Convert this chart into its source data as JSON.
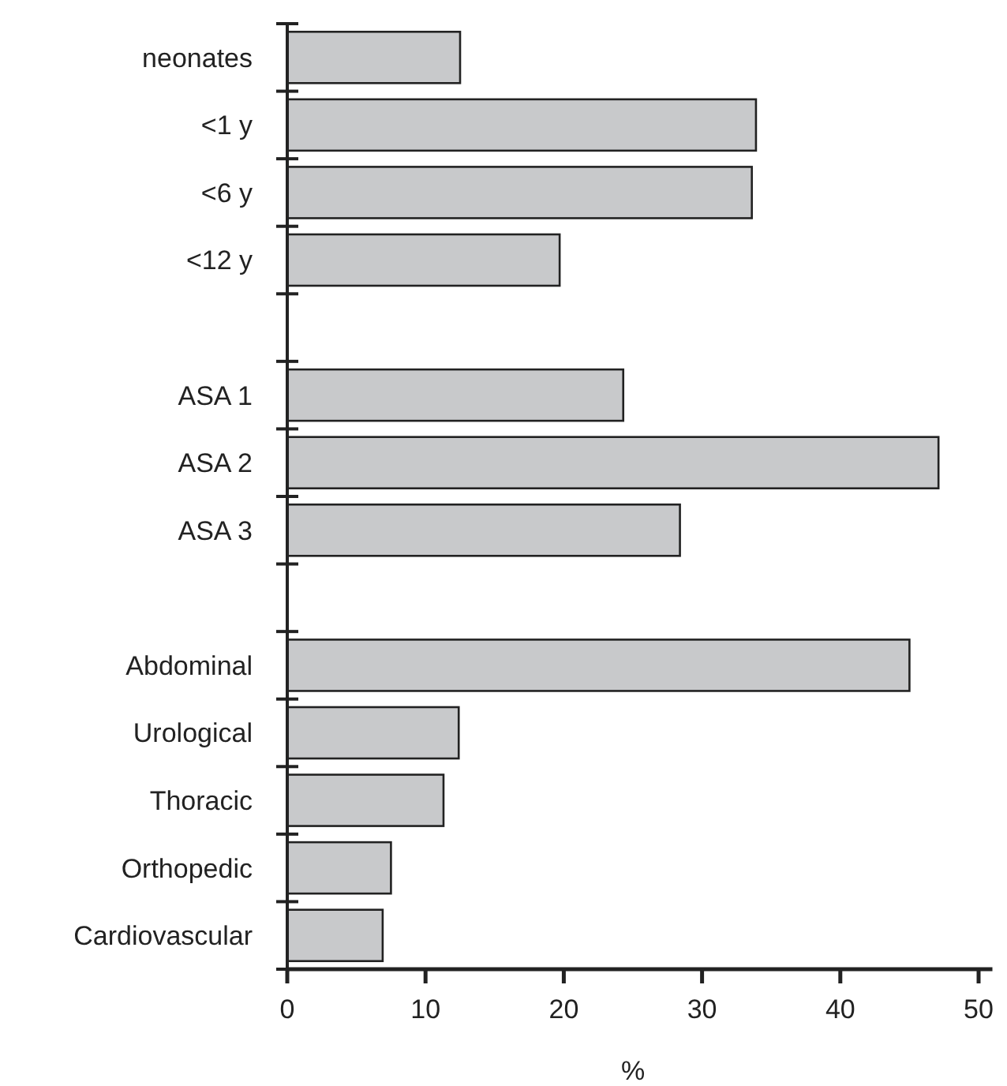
{
  "chart_data": {
    "type": "bar",
    "orientation": "horizontal",
    "xlabel": "%",
    "categories": [
      "neonates",
      "<1 y",
      "<6 y",
      "<12 y",
      null,
      "ASA 1",
      "ASA 2",
      "ASA 3",
      null,
      "Abdominal",
      "Urological",
      "Thoracic",
      "Orthopedic",
      "Cardiovascular"
    ],
    "values": [
      12.5,
      33.9,
      33.6,
      19.7,
      null,
      24.3,
      47.1,
      28.4,
      null,
      45.0,
      12.4,
      11.3,
      7.5,
      6.9
    ],
    "color": "#c8c9cb",
    "xlim": [
      0,
      51
    ],
    "xticks": [
      0,
      10,
      20,
      30,
      40,
      50
    ],
    "grid": false
  }
}
